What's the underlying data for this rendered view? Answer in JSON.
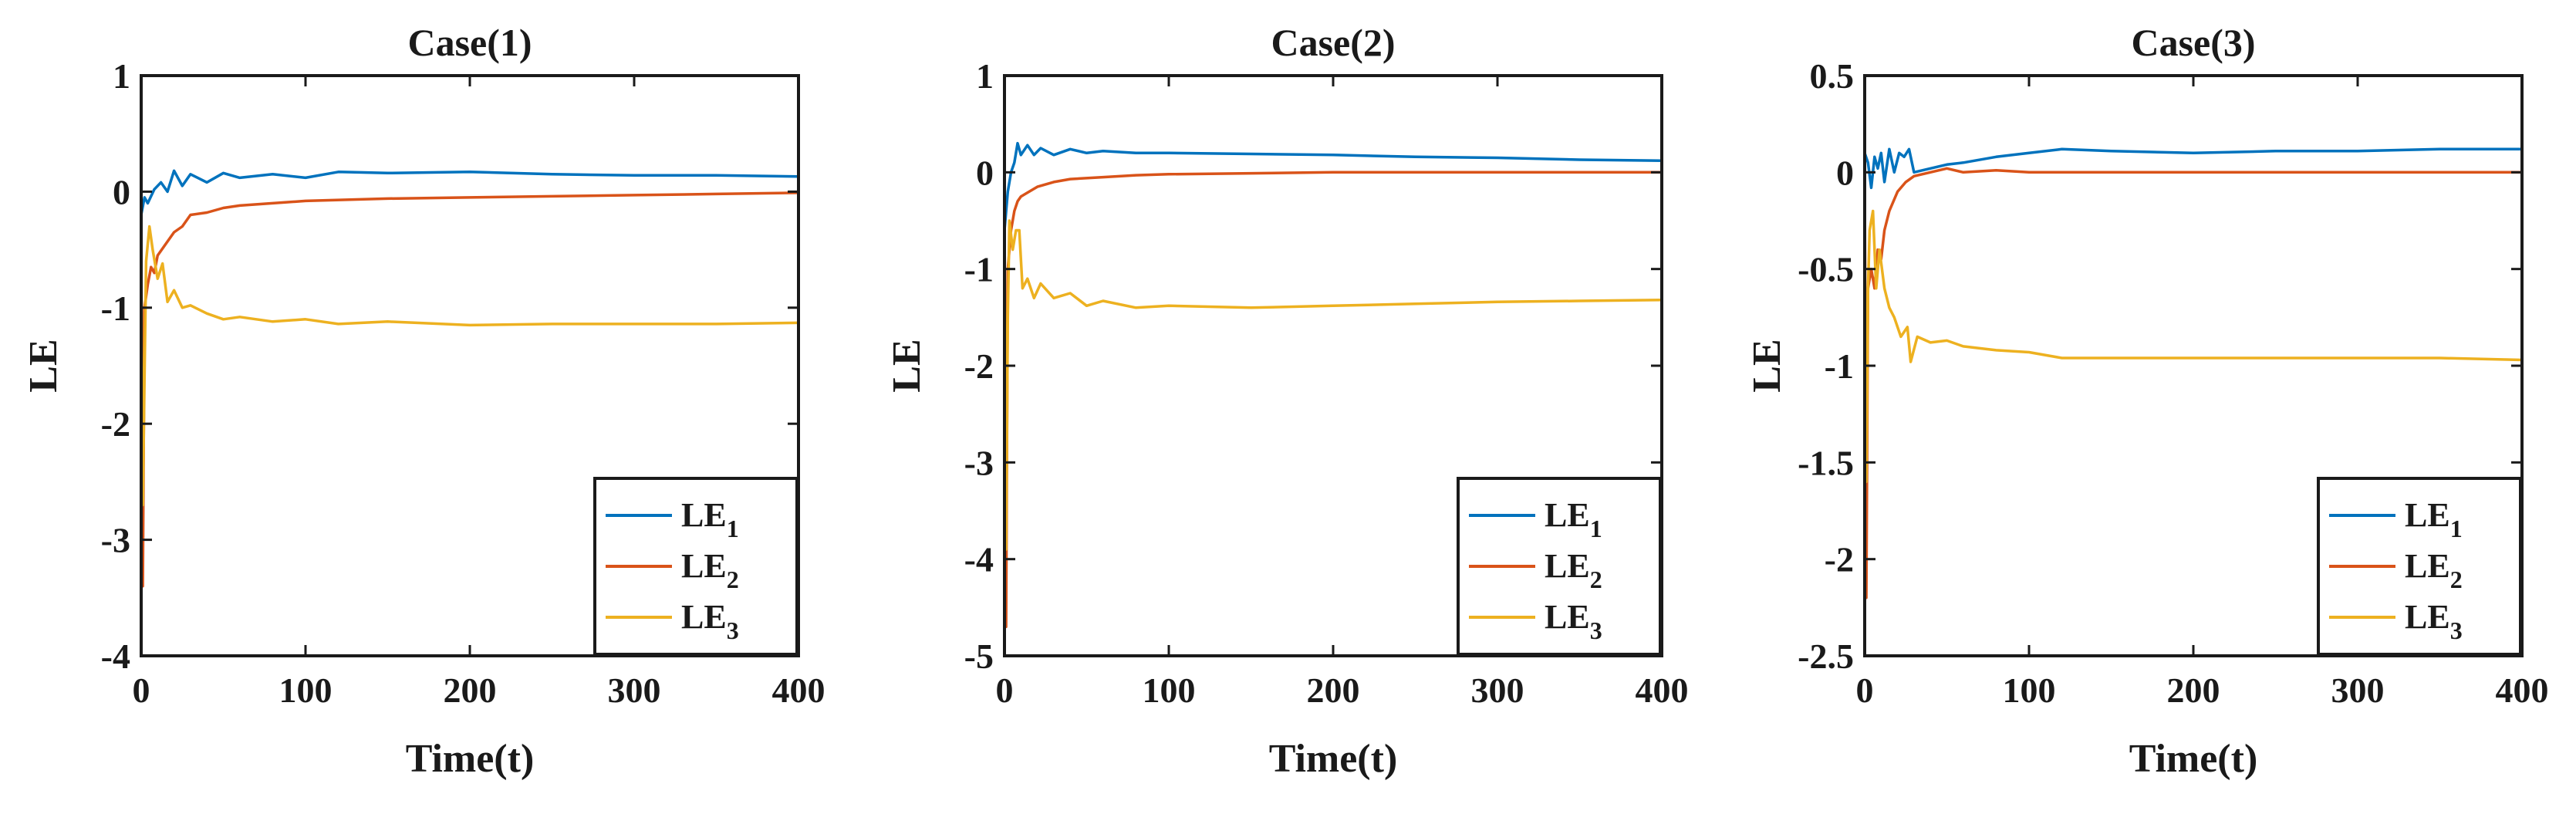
{
  "chart_data": [
    {
      "type": "line",
      "title": "Case(1)",
      "xlabel": "Time(t)",
      "ylabel": "LE",
      "xlim": [
        0,
        400
      ],
      "ylim": [
        -4,
        1
      ],
      "xticks": [
        "0",
        "100",
        "200",
        "300",
        "400"
      ],
      "yticks": [
        "1",
        "0",
        "-1",
        "-2",
        "-3",
        "-4"
      ],
      "legend": "bottom-right",
      "series": [
        {
          "name": "LE",
          "sub": "1",
          "color": "#0072BD",
          "x": [
            0,
            2,
            4,
            8,
            12,
            16,
            20,
            25,
            30,
            40,
            50,
            60,
            80,
            100,
            120,
            150,
            200,
            250,
            300,
            350,
            400
          ],
          "y": [
            -0.2,
            -0.05,
            -0.1,
            0.02,
            0.08,
            0.0,
            0.18,
            0.05,
            0.15,
            0.08,
            0.16,
            0.12,
            0.15,
            0.12,
            0.17,
            0.16,
            0.17,
            0.15,
            0.14,
            0.14,
            0.13
          ]
        },
        {
          "name": "LE",
          "sub": "2",
          "color": "#D95319",
          "x": [
            0,
            1,
            2,
            4,
            6,
            8,
            10,
            15,
            20,
            25,
            30,
            40,
            50,
            60,
            80,
            100,
            150,
            200,
            250,
            300,
            350,
            400
          ],
          "y": [
            -0.5,
            -3.4,
            -1.0,
            -0.8,
            -0.65,
            -0.7,
            -0.55,
            -0.45,
            -0.35,
            -0.3,
            -0.2,
            -0.18,
            -0.14,
            -0.12,
            -0.1,
            -0.08,
            -0.06,
            -0.05,
            -0.04,
            -0.03,
            -0.02,
            -0.01
          ]
        },
        {
          "name": "LE",
          "sub": "3",
          "color": "#EDB120",
          "x": [
            0,
            1,
            2,
            3,
            5,
            7,
            10,
            13,
            16,
            20,
            25,
            30,
            40,
            50,
            60,
            80,
            100,
            120,
            150,
            200,
            250,
            300,
            350,
            400
          ],
          "y": [
            -0.5,
            -2.7,
            -1.6,
            -0.6,
            -0.3,
            -0.5,
            -0.75,
            -0.62,
            -0.95,
            -0.85,
            -1.0,
            -0.98,
            -1.05,
            -1.1,
            -1.08,
            -1.12,
            -1.1,
            -1.14,
            -1.12,
            -1.15,
            -1.14,
            -1.14,
            -1.14,
            -1.13
          ]
        }
      ]
    },
    {
      "type": "line",
      "title": "Case(2)",
      "xlabel": "Time(t)",
      "ylabel": "LE",
      "xlim": [
        0,
        400
      ],
      "ylim": [
        -5,
        1
      ],
      "xticks": [
        "0",
        "100",
        "200",
        "300",
        "400"
      ],
      "yticks": [
        "1",
        "0",
        "-1",
        "-2",
        "-3",
        "-4",
        "-5"
      ],
      "legend": "bottom-right",
      "series": [
        {
          "name": "LE",
          "sub": "1",
          "color": "#0072BD",
          "x": [
            0,
            2,
            4,
            6,
            8,
            10,
            14,
            18,
            22,
            30,
            40,
            50,
            60,
            80,
            100,
            150,
            200,
            250,
            300,
            350,
            400
          ],
          "y": [
            -0.6,
            -0.2,
            0.0,
            0.1,
            0.3,
            0.18,
            0.28,
            0.18,
            0.25,
            0.18,
            0.24,
            0.2,
            0.22,
            0.2,
            0.2,
            0.19,
            0.18,
            0.16,
            0.15,
            0.13,
            0.12
          ]
        },
        {
          "name": "LE",
          "sub": "2",
          "color": "#D95319",
          "x": [
            0,
            1,
            2,
            4,
            6,
            8,
            10,
            15,
            20,
            30,
            40,
            60,
            80,
            100,
            150,
            200,
            250,
            300,
            350,
            400
          ],
          "y": [
            -0.5,
            -4.7,
            -1.0,
            -0.6,
            -0.4,
            -0.3,
            -0.25,
            -0.2,
            -0.15,
            -0.1,
            -0.07,
            -0.05,
            -0.03,
            -0.02,
            -0.01,
            0.0,
            0.0,
            0.0,
            0.0,
            0.0
          ]
        },
        {
          "name": "LE",
          "sub": "3",
          "color": "#EDB120",
          "x": [
            0,
            1,
            2,
            3,
            5,
            7,
            9,
            11,
            14,
            18,
            22,
            30,
            40,
            50,
            60,
            80,
            100,
            150,
            200,
            250,
            300,
            350,
            400
          ],
          "y": [
            -0.5,
            -3.9,
            -1.5,
            -0.5,
            -0.8,
            -0.6,
            -0.6,
            -1.2,
            -1.1,
            -1.3,
            -1.15,
            -1.3,
            -1.25,
            -1.38,
            -1.33,
            -1.4,
            -1.38,
            -1.4,
            -1.38,
            -1.36,
            -1.34,
            -1.33,
            -1.32
          ]
        }
      ]
    },
    {
      "type": "line",
      "title": "Case(3)",
      "xlabel": "Time(t)",
      "ylabel": "LE",
      "xlim": [
        0,
        400
      ],
      "ylim": [
        -2.5,
        0.5
      ],
      "xticks": [
        "0",
        "100",
        "200",
        "300",
        "400"
      ],
      "yticks": [
        "0.5",
        "0",
        "-0.5",
        "-1",
        "-1.5",
        "-2",
        "-2.5"
      ],
      "legend": "bottom-right",
      "series": [
        {
          "name": "LE",
          "sub": "1",
          "color": "#0072BD",
          "x": [
            0,
            2,
            4,
            6,
            8,
            10,
            12,
            15,
            18,
            21,
            24,
            27,
            30,
            40,
            50,
            60,
            80,
            100,
            120,
            150,
            200,
            250,
            300,
            350,
            400
          ],
          "y": [
            0.1,
            0.05,
            -0.08,
            0.08,
            0.02,
            0.1,
            -0.05,
            0.12,
            0.0,
            0.1,
            0.08,
            0.12,
            0.0,
            0.02,
            0.04,
            0.05,
            0.08,
            0.1,
            0.12,
            0.11,
            0.1,
            0.11,
            0.11,
            0.12,
            0.12
          ]
        },
        {
          "name": "LE",
          "sub": "2",
          "color": "#D95319",
          "x": [
            0,
            1,
            2,
            4,
            6,
            8,
            10,
            12,
            15,
            20,
            25,
            30,
            40,
            50,
            60,
            80,
            100,
            150,
            200,
            250,
            300,
            350,
            400
          ],
          "y": [
            0.0,
            -2.2,
            -0.6,
            -0.5,
            -0.6,
            -0.4,
            -0.45,
            -0.3,
            -0.2,
            -0.1,
            -0.05,
            -0.02,
            0.0,
            0.02,
            0.0,
            0.01,
            0.0,
            0.0,
            0.0,
            0.0,
            0.0,
            0.0,
            0.0
          ]
        },
        {
          "name": "LE",
          "sub": "3",
          "color": "#EDB120",
          "x": [
            0,
            1,
            2,
            3,
            5,
            7,
            9,
            12,
            15,
            18,
            22,
            26,
            28,
            32,
            40,
            50,
            60,
            80,
            100,
            120,
            150,
            200,
            250,
            300,
            350,
            400
          ],
          "y": [
            -0.3,
            -1.6,
            -0.6,
            -0.3,
            -0.2,
            -0.6,
            -0.4,
            -0.6,
            -0.7,
            -0.75,
            -0.85,
            -0.8,
            -0.98,
            -0.85,
            -0.88,
            -0.87,
            -0.9,
            -0.92,
            -0.93,
            -0.96,
            -0.96,
            -0.96,
            -0.96,
            -0.96,
            -0.96,
            -0.97
          ]
        }
      ]
    }
  ]
}
